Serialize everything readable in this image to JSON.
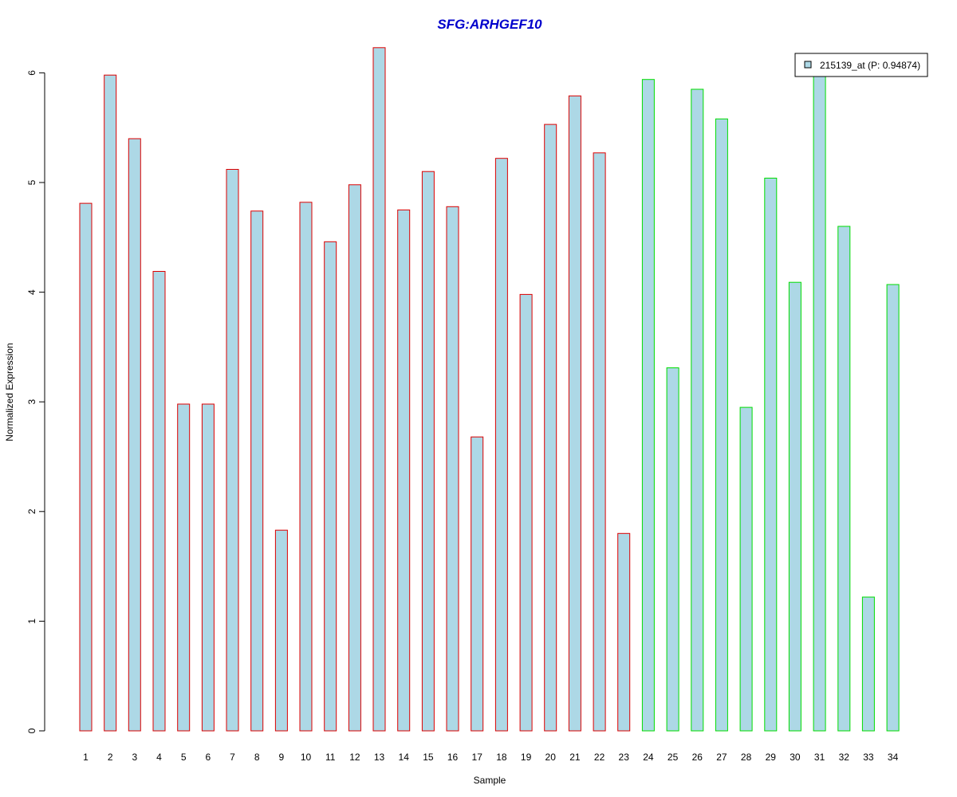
{
  "chart_data": {
    "type": "bar",
    "title": "SFG:ARHGEF10",
    "xlabel": "Sample",
    "ylabel": "Normalized Expression",
    "ylim": [
      0,
      6.25
    ],
    "y_ticks": [
      "0",
      "1",
      "2",
      "3",
      "4",
      "5",
      "6"
    ],
    "categories": [
      "1",
      "2",
      "3",
      "4",
      "5",
      "6",
      "7",
      "8",
      "9",
      "10",
      "11",
      "12",
      "13",
      "14",
      "15",
      "16",
      "17",
      "18",
      "19",
      "20",
      "21",
      "22",
      "23",
      "24",
      "25",
      "26",
      "27",
      "28",
      "29",
      "30",
      "31",
      "32",
      "33",
      "34"
    ],
    "values": [
      4.81,
      5.98,
      5.4,
      4.19,
      2.98,
      2.98,
      5.12,
      4.74,
      1.83,
      4.82,
      4.46,
      4.98,
      6.23,
      4.75,
      5.1,
      4.78,
      2.68,
      5.22,
      3.98,
      5.53,
      5.79,
      5.27,
      1.8,
      5.94,
      3.31,
      5.85,
      5.58,
      2.95,
      5.04,
      4.09,
      6.01,
      4.6,
      1.22,
      4.07
    ],
    "groups": [
      "a",
      "a",
      "a",
      "a",
      "a",
      "a",
      "a",
      "a",
      "a",
      "a",
      "a",
      "a",
      "a",
      "a",
      "a",
      "a",
      "a",
      "a",
      "a",
      "a",
      "a",
      "a",
      "a",
      "b",
      "b",
      "b",
      "b",
      "b",
      "b",
      "b",
      "b",
      "b",
      "b",
      "b"
    ],
    "grid": false,
    "legend": {
      "placement": "top-right",
      "entries": [
        "215139_at (P: 0.94874)"
      ]
    },
    "colors": {
      "fill": "#add8e6",
      "border_group_a": "#dd0000",
      "border_group_b": "#00dd00",
      "title": "#0000cc"
    }
  }
}
